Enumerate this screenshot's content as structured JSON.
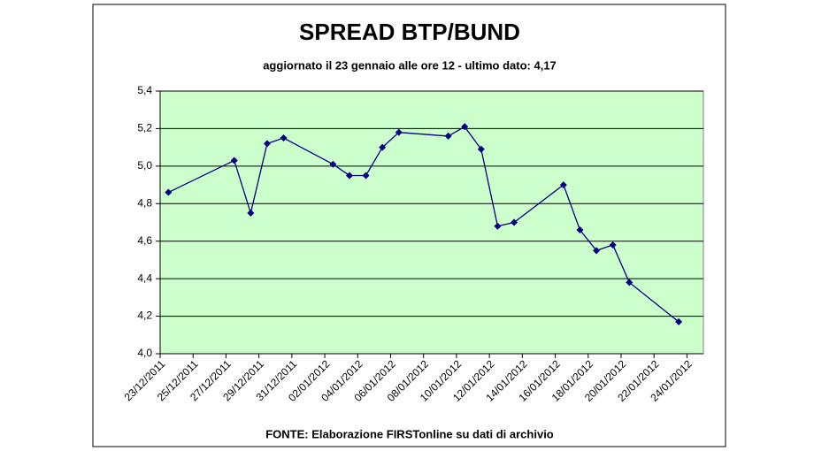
{
  "chart_data": {
    "type": "line",
    "title": "SPREAD BTP/BUND",
    "subtitle": "aggiornato il 23 gennaio alle ore 12 - ultimo dato: 4,17",
    "source": "FONTE: Elaborazione FIRSTonline su dati di archivio",
    "x": [
      "23/12/2011",
      "27/12/2011",
      "28/12/2011",
      "29/12/2011",
      "30/12/2011",
      "02/01/2012",
      "03/01/2012",
      "04/01/2012",
      "05/01/2012",
      "06/01/2012",
      "09/01/2012",
      "10/01/2012",
      "11/01/2012",
      "12/01/2012",
      "13/01/2012",
      "16/01/2012",
      "17/01/2012",
      "18/01/2012",
      "19/01/2012",
      "20/01/2012",
      "23/01/2012"
    ],
    "series": [
      {
        "name": "Spread",
        "color": "#000080",
        "values": [
          4.86,
          5.03,
          4.75,
          5.12,
          5.15,
          5.01,
          4.95,
          4.95,
          5.1,
          5.18,
          5.16,
          5.21,
          5.09,
          4.68,
          4.7,
          4.9,
          4.66,
          4.55,
          4.58,
          4.38,
          4.17
        ]
      }
    ],
    "xlim": [
      "23/12/2011",
      "25/01/2012"
    ],
    "xticks": [
      "23/12/2011",
      "25/12/2011",
      "27/12/2011",
      "29/12/2011",
      "31/12/2011",
      "02/01/2012",
      "04/01/2012",
      "06/01/2012",
      "08/01/2012",
      "10/01/2012",
      "12/01/2012",
      "14/01/2012",
      "16/01/2012",
      "18/01/2012",
      "20/01/2012",
      "22/01/2012",
      "24/01/2012"
    ],
    "ylim": [
      4.0,
      5.4
    ],
    "yticks": [
      {
        "value": 4.0,
        "label": "4,0"
      },
      {
        "value": 4.2,
        "label": "4,2"
      },
      {
        "value": 4.4,
        "label": "4,4"
      },
      {
        "value": 4.6,
        "label": "4,6"
      },
      {
        "value": 4.8,
        "label": "4,8"
      },
      {
        "value": 5.0,
        "label": "5,0"
      },
      {
        "value": 5.2,
        "label": "5,2"
      },
      {
        "value": 5.4,
        "label": "5,4"
      }
    ],
    "grid": true,
    "plot_background": "#ccffcc"
  }
}
